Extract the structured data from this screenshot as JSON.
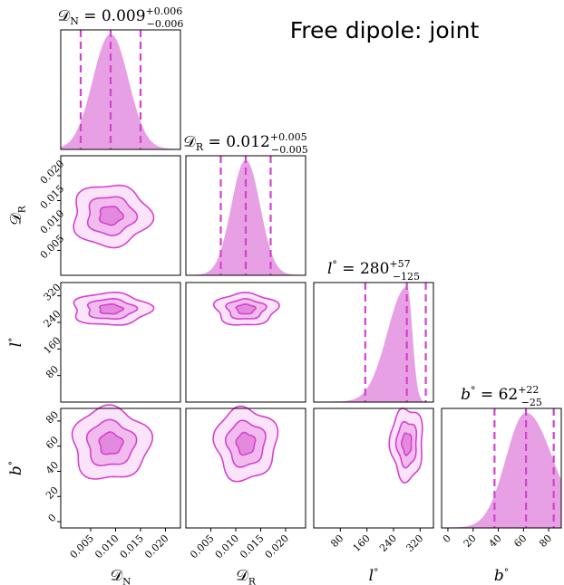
{
  "title": "Free dipole: joint",
  "colors": {
    "accent": "#d44fd0",
    "fill": "#e7a0e3",
    "line": "#d442cf"
  },
  "panels_titles": [
    {
      "sym": "𝒟",
      "sub": "N",
      "value": "0.009",
      "plus": "+0.006",
      "minus": "−0.006"
    },
    {
      "sym": "𝒟",
      "sub": "R",
      "value": "0.012",
      "plus": "+0.005",
      "minus": "−0.005"
    },
    {
      "sym": "l",
      "sup": "°",
      "value": "280",
      "plus": "+57",
      "minus": "−125"
    },
    {
      "sym": "b",
      "sup": "°",
      "value": "62",
      "plus": "+22",
      "minus": "−25"
    }
  ],
  "chart_data": {
    "type": "corner",
    "title": "Free dipole: joint",
    "parameters": [
      {
        "name": "D_N",
        "label": "𝒟",
        "sub": "N",
        "range": [
          -0.001,
          0.023
        ],
        "ticks": [
          0.005,
          0.01,
          0.015,
          0.02
        ],
        "tick_labels": [
          "0.005",
          "0.010",
          "0.015",
          "0.020"
        ],
        "median": 0.009,
        "low": 0.003,
        "high": 0.015,
        "sd": 0.0035
      },
      {
        "name": "D_R",
        "label": "𝒟",
        "sub": "R",
        "range": [
          0.0,
          0.024
        ],
        "ticks": [
          0.005,
          0.01,
          0.015,
          0.02
        ],
        "tick_labels": [
          "0.005",
          "0.010",
          "0.015",
          "0.020"
        ],
        "median": 0.012,
        "low": 0.007,
        "high": 0.017,
        "sd": 0.0028
      },
      {
        "name": "l",
        "label": "l",
        "sup": "°",
        "range": [
          0,
          360
        ],
        "ticks": [
          80,
          160,
          240,
          320
        ],
        "tick_labels": [
          "80",
          "160",
          "240",
          "320"
        ],
        "median": 280,
        "low": 155,
        "high": 337,
        "sd": 22
      },
      {
        "name": "b",
        "label": "b",
        "sup": "°",
        "range": [
          -5,
          90
        ],
        "ticks": [
          0,
          20,
          40,
          60,
          80
        ],
        "tick_labels": [
          "0",
          "20",
          "40",
          "60",
          "80"
        ],
        "median": 62,
        "low": 37,
        "high": 84,
        "sd": 13
      }
    ],
    "contour_levels": [
      0.39,
      0.86,
      0.99
    ]
  }
}
